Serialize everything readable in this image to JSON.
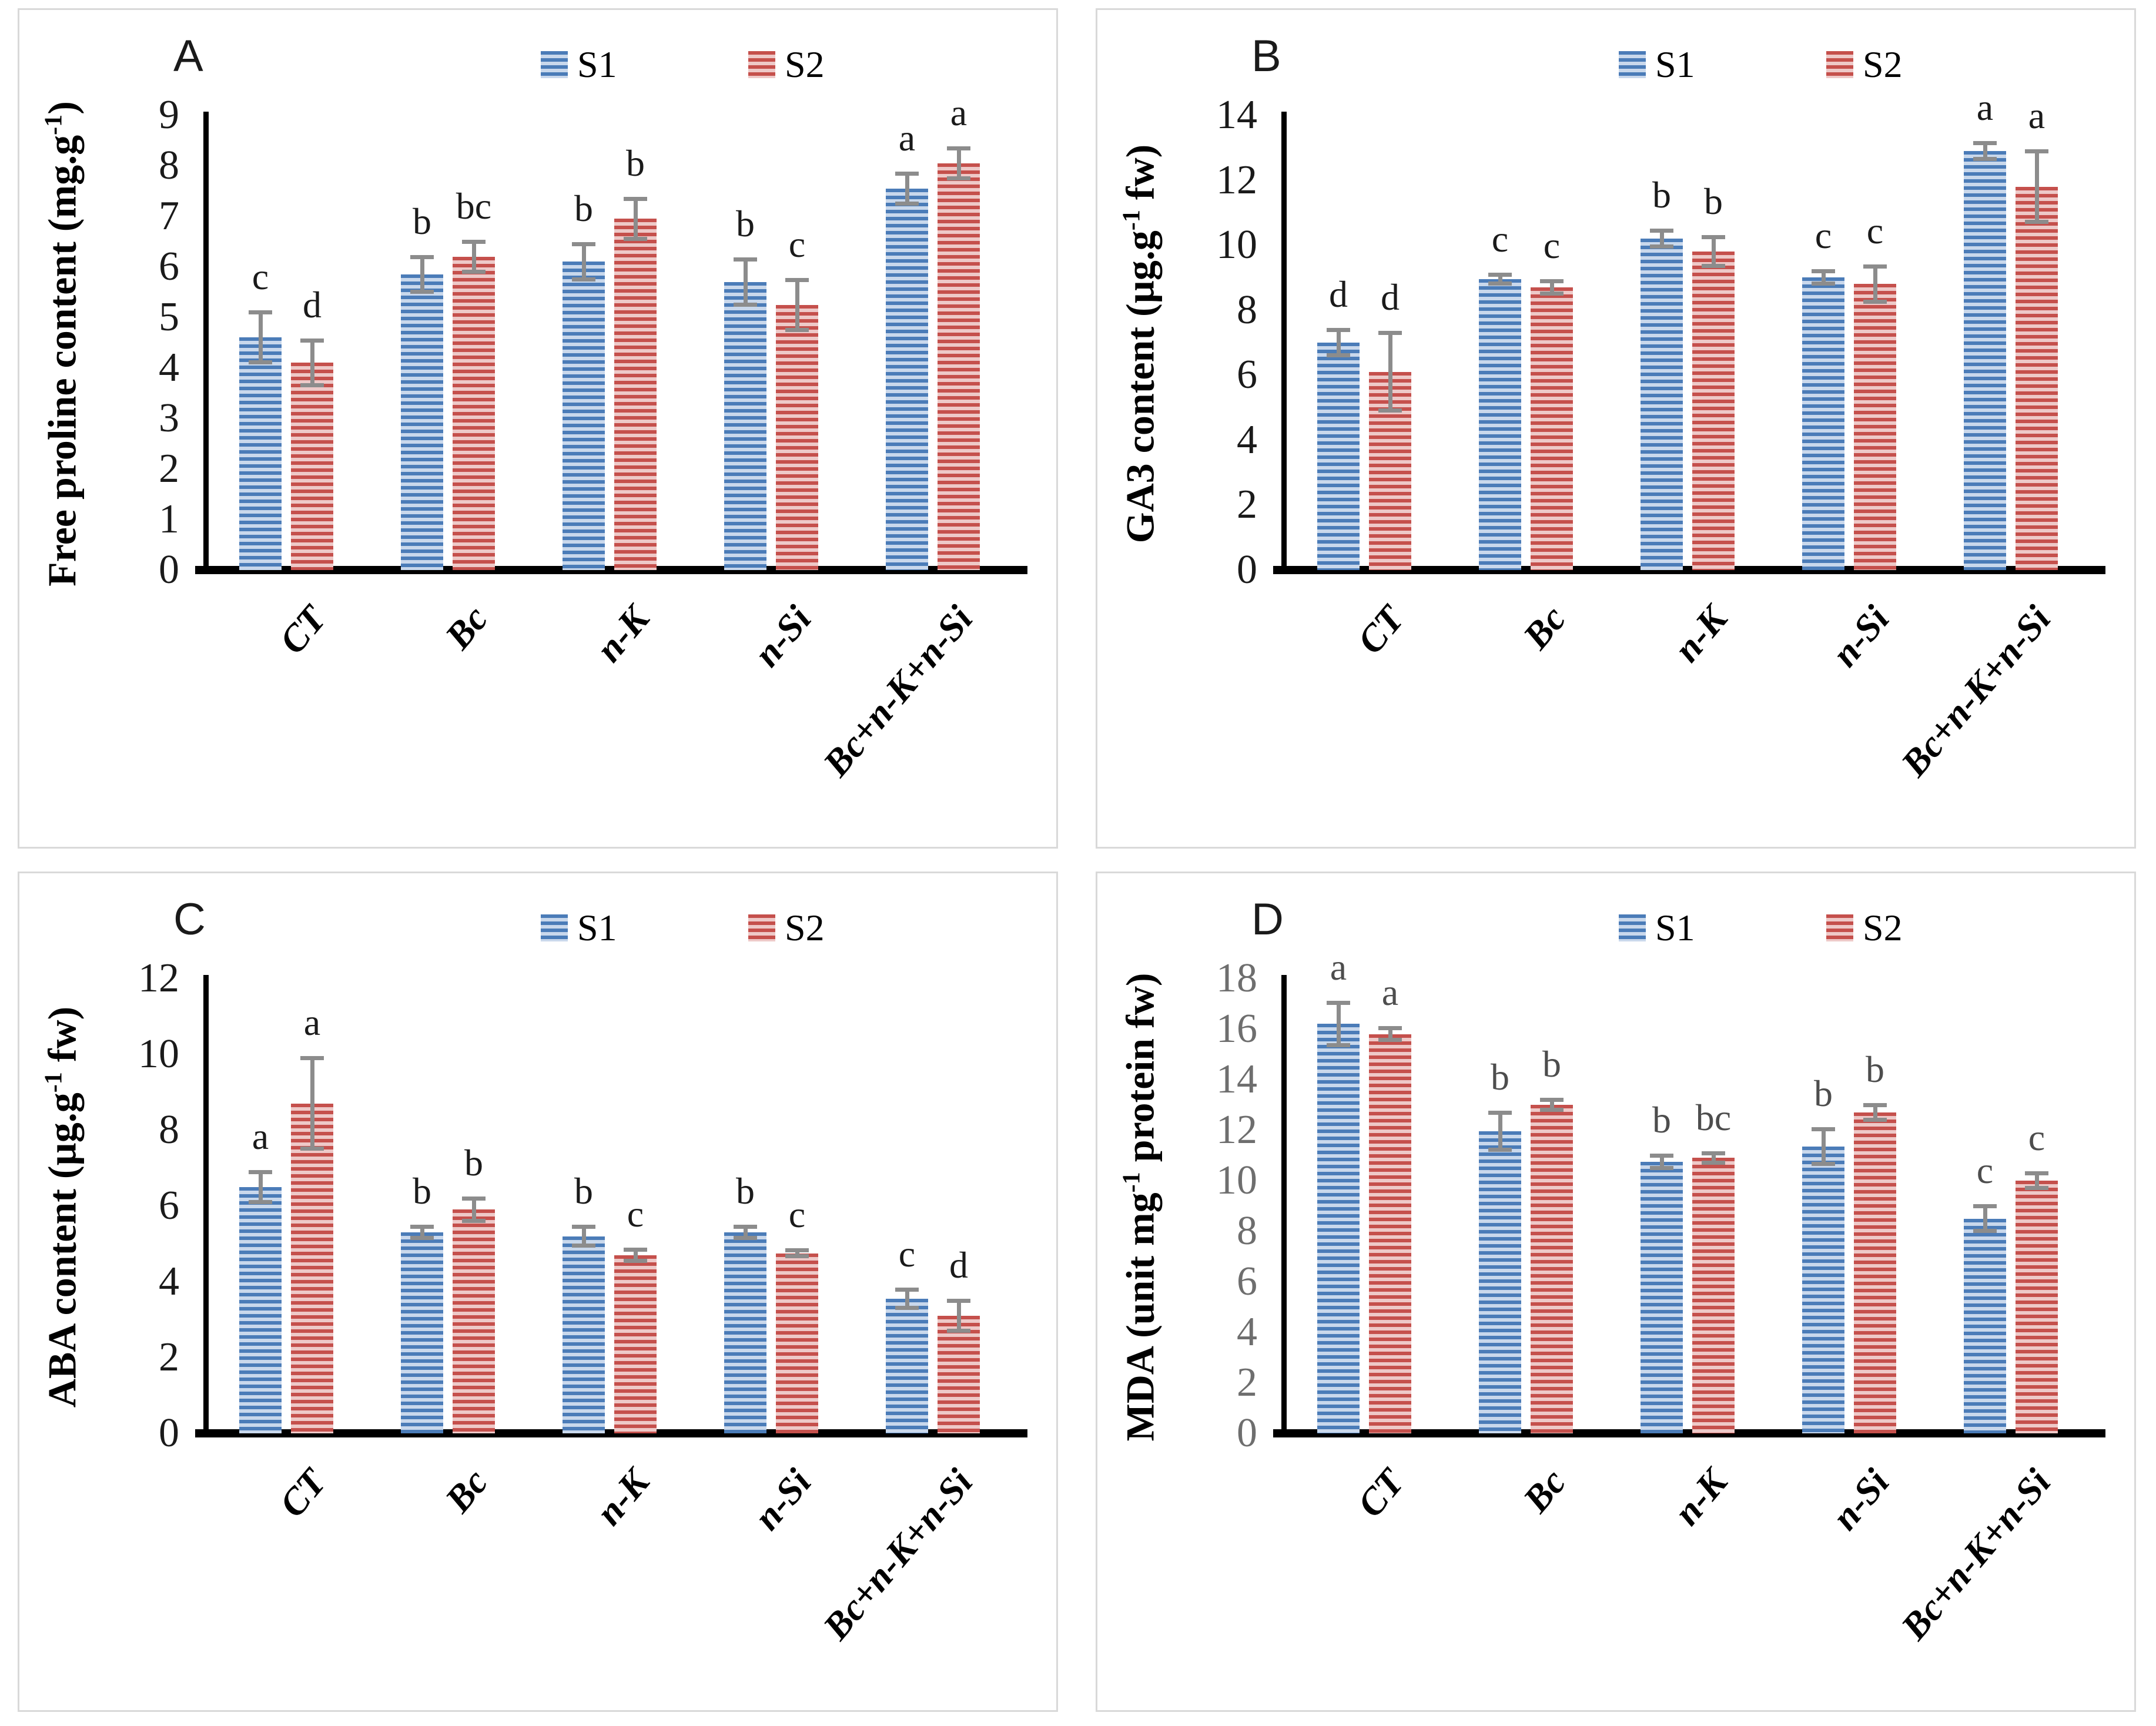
{
  "figure_title": "Four-panel bar figure with significance letters",
  "legend": {
    "items": [
      "S1",
      "S2"
    ]
  },
  "colors": {
    "s1_dark": "#4b7cb8",
    "s1_light": "#c9d8ec",
    "s2_dark": "#c5504c",
    "s2_light": "#eec9c8",
    "error_bar": "#8c8c8c",
    "axis": "#000000",
    "panel_border": "#d9d9d9",
    "gray_tick": "#6e6e6e"
  },
  "chart_data": [
    {
      "type": "bar",
      "panel": "A",
      "ylabel": "Free proline content (mg.g-1)",
      "ylabel_parts": {
        "main": "Free proline content (mg.g",
        "sup": "-1",
        "end": ")"
      },
      "ylim": [
        0,
        9
      ],
      "ytick_step": 1,
      "tick_color": "#1a1a1a",
      "letter_color": "#1a1a1a",
      "grid": false,
      "legend_position": "top",
      "categories": [
        "CT",
        "Bc",
        "n-K",
        "n-Si",
        "Bc+n-K+n-Si"
      ],
      "series": [
        {
          "name": "S1",
          "values": [
            4.6,
            5.85,
            6.1,
            5.7,
            7.55
          ],
          "errors": [
            0.5,
            0.35,
            0.35,
            0.45,
            0.3
          ],
          "letters": [
            "c",
            "b",
            "b",
            "b",
            "a"
          ]
        },
        {
          "name": "S2",
          "values": [
            4.1,
            6.2,
            6.95,
            5.25,
            8.05
          ],
          "errors": [
            0.45,
            0.3,
            0.4,
            0.5,
            0.3
          ],
          "letters": [
            "d",
            "bc",
            "b",
            "c",
            "a"
          ]
        }
      ]
    },
    {
      "type": "bar",
      "panel": "B",
      "ylabel": "GA3 content (µg.g-1 fw)",
      "ylabel_parts": {
        "main": "GA3 content (µg.g",
        "sup": "-1",
        "end": " fw)"
      },
      "ylim": [
        0,
        14
      ],
      "ytick_step": 2,
      "tick_color": "#1a1a1a",
      "letter_color": "#1a1a1a",
      "grid": false,
      "legend_position": "top",
      "categories": [
        "CT",
        "Bc",
        "n-K",
        "n-Si",
        "Bc+n-K+n-Si"
      ],
      "series": [
        {
          "name": "S1",
          "values": [
            7.0,
            8.95,
            10.2,
            9.0,
            12.9
          ],
          "errors": [
            0.4,
            0.15,
            0.25,
            0.2,
            0.25
          ],
          "letters": [
            "d",
            "c",
            "b",
            "c",
            "a"
          ]
        },
        {
          "name": "S2",
          "values": [
            6.1,
            8.7,
            9.8,
            8.8,
            11.8
          ],
          "errors": [
            1.2,
            0.2,
            0.45,
            0.55,
            1.1
          ],
          "letters": [
            "d",
            "c",
            "b",
            "c",
            "a"
          ]
        }
      ]
    },
    {
      "type": "bar",
      "panel": "C",
      "ylabel": "ABA content (µg.g-1 fw)",
      "ylabel_parts": {
        "main": "ABA content (µg.g",
        "sup": "-1",
        "end": " fw)"
      },
      "ylim": [
        0,
        12
      ],
      "ytick_step": 2,
      "tick_color": "#1a1a1a",
      "letter_color": "#1a1a1a",
      "grid": false,
      "legend_position": "top",
      "categories": [
        "CT",
        "Bc",
        "n-K",
        "n-Si",
        "Bc+n-K+n-Si"
      ],
      "series": [
        {
          "name": "S1",
          "values": [
            6.5,
            5.3,
            5.2,
            5.3,
            3.55
          ],
          "errors": [
            0.4,
            0.15,
            0.25,
            0.15,
            0.25
          ],
          "letters": [
            "a",
            "b",
            "b",
            "b",
            "c"
          ]
        },
        {
          "name": "S2",
          "values": [
            8.7,
            5.9,
            4.7,
            4.75,
            3.1
          ],
          "errors": [
            1.2,
            0.3,
            0.15,
            0.08,
            0.4
          ],
          "letters": [
            "a",
            "b",
            "c",
            "c",
            "d"
          ]
        }
      ]
    },
    {
      "type": "bar",
      "panel": "D",
      "ylabel": "MDA (unit mg-1 protein fw)",
      "ylabel_parts": {
        "main": "MDA (unit mg",
        "sup": "-1",
        "end": " protein fw)"
      },
      "ylim": [
        0,
        18
      ],
      "ytick_step": 2,
      "tick_color": "#6e6e6e",
      "letter_color": "#4d4d4d",
      "grid": false,
      "legend_position": "top",
      "categories": [
        "CT",
        "Bc",
        "n-K",
        "n-Si",
        "Bc+n-K+n-Si"
      ],
      "series": [
        {
          "name": "S1",
          "values": [
            16.2,
            11.95,
            10.75,
            11.35,
            8.5
          ],
          "errors": [
            0.85,
            0.75,
            0.25,
            0.7,
            0.5
          ],
          "letters": [
            "a",
            "b",
            "b",
            "b",
            "c"
          ]
        },
        {
          "name": "S2",
          "values": [
            15.8,
            13.0,
            10.9,
            12.7,
            10.0
          ],
          "errors": [
            0.25,
            0.2,
            0.2,
            0.3,
            0.3
          ],
          "letters": [
            "a",
            "b",
            "bc",
            "b",
            "c"
          ]
        }
      ]
    }
  ]
}
